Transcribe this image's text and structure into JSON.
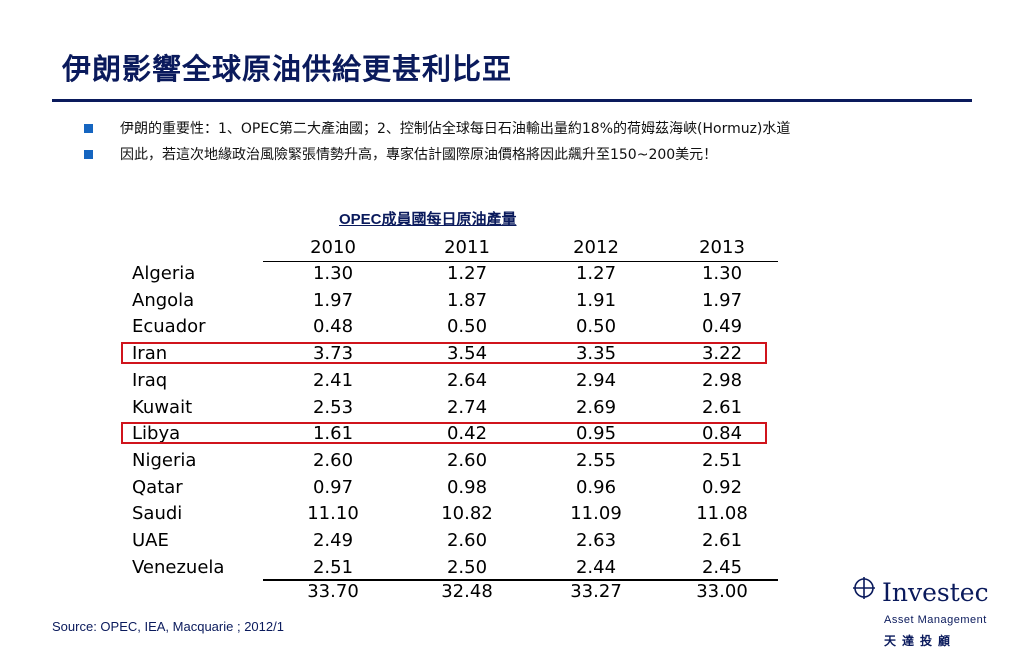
{
  "title": "伊朗影響全球原油供給更甚利比亞",
  "bullets": [
    "伊朗的重要性：1、OPEC第二大產油國；2、控制佔全球每日石油輸出量約18%的荷姆茲海峽(Hormuz)水道",
    "因此，若這次地緣政治風險緊張情勢升高，專家估計國際原油價格將因此飆升至150~200美元！"
  ],
  "table": {
    "caption": "OPEC成員國每日原油產量",
    "years": [
      "2010",
      "2011",
      "2012",
      "2013"
    ],
    "rows": [
      {
        "country": "Algeria",
        "values": [
          "1.30",
          "1.27",
          "1.27",
          "1.30"
        ]
      },
      {
        "country": "Angola",
        "values": [
          "1.97",
          "1.87",
          "1.91",
          "1.97"
        ]
      },
      {
        "country": "Ecuador",
        "values": [
          "0.48",
          "0.50",
          "0.50",
          "0.49"
        ]
      },
      {
        "country": "Iran",
        "values": [
          "3.73",
          "3.54",
          "3.35",
          "3.22"
        ],
        "highlighted": true
      },
      {
        "country": "Iraq",
        "values": [
          "2.41",
          "2.64",
          "2.94",
          "2.98"
        ]
      },
      {
        "country": "Kuwait",
        "values": [
          "2.53",
          "2.74",
          "2.69",
          "2.61"
        ]
      },
      {
        "country": "Libya",
        "values": [
          "1.61",
          "0.42",
          "0.95",
          "0.84"
        ],
        "highlighted": true
      },
      {
        "country": "Nigeria",
        "values": [
          "2.60",
          "2.60",
          "2.55",
          "2.51"
        ]
      },
      {
        "country": "Qatar",
        "values": [
          "0.97",
          "0.98",
          "0.96",
          "0.92"
        ]
      },
      {
        "country": "Saudi",
        "values": [
          "11.10",
          "10.82",
          "11.09",
          "11.08"
        ]
      },
      {
        "country": "UAE",
        "values": [
          "2.49",
          "2.60",
          "2.63",
          "2.61"
        ]
      },
      {
        "country": "Venezuela",
        "values": [
          "2.51",
          "2.50",
          "2.44",
          "2.45"
        ]
      }
    ],
    "totals": [
      "33.70",
      "32.48",
      "33.27",
      "33.00"
    ],
    "highlight_color": "#d0141c"
  },
  "source": "Source: OPEC, IEA, Macquarie ; 2012/1",
  "logo": {
    "name": "Investec",
    "subtitle": "Asset Management",
    "chinese": "天達投顧"
  },
  "colors": {
    "title": "#0a1a5c",
    "bullet_square": "#1565c0"
  }
}
